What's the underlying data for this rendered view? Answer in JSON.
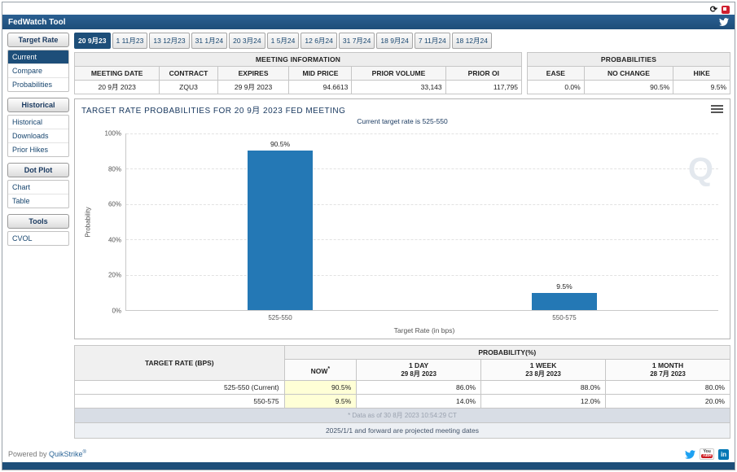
{
  "app": {
    "title": "FedWatch Tool"
  },
  "icons": {
    "refresh": "⟳",
    "youtube_you": "You",
    "youtube_tube": "Tube",
    "linkedin": "in"
  },
  "sidebar": {
    "sections": [
      {
        "header": "Target Rate",
        "selected_item": "Current",
        "items": [
          "Current",
          "Compare",
          "Probabilities"
        ]
      },
      {
        "header": "Historical",
        "items": [
          "Historical",
          "Downloads",
          "Prior Hikes"
        ]
      },
      {
        "header": "Dot Plot",
        "items": [
          "Chart",
          "Table"
        ]
      },
      {
        "header": "Tools",
        "items": [
          "CVOL"
        ]
      }
    ]
  },
  "tabs": {
    "selected": "20 9月23",
    "items": [
      "20 9月23",
      "1 11月23",
      "13 12月23",
      "31 1月24",
      "20 3月24",
      "1 5月24",
      "12 6月24",
      "31 7月24",
      "18 9月24",
      "7 11月24",
      "18 12月24"
    ]
  },
  "meeting_information": {
    "title": "MEETING INFORMATION",
    "headers": [
      "MEETING DATE",
      "CONTRACT",
      "EXPIRES",
      "MID PRICE",
      "PRIOR VOLUME",
      "PRIOR OI"
    ],
    "values": [
      "20 9月 2023",
      "ZQU3",
      "29 9月 2023",
      "94.6613",
      "33,143",
      "117,795"
    ]
  },
  "probabilities_summary": {
    "title": "PROBABILITIES",
    "headers": [
      "EASE",
      "NO CHANGE",
      "HIKE"
    ],
    "values": [
      "0.0%",
      "90.5%",
      "9.5%"
    ]
  },
  "chart_data": {
    "type": "bar",
    "title": "TARGET RATE PROBABILITIES FOR 20 9月 2023 FED MEETING",
    "subtitle": "Current target rate is 525-550",
    "categories": [
      "525-550",
      "550-575"
    ],
    "values": [
      90.5,
      9.5
    ],
    "value_labels": [
      "90.5%",
      "9.5%"
    ],
    "xlabel": "Target Rate (in bps)",
    "ylabel": "Probability",
    "ylim": [
      0,
      100
    ],
    "ytick_labels": [
      "100%",
      "80%",
      "60%",
      "40%",
      "20%",
      "0%"
    ],
    "grid": true,
    "legend": false,
    "bar_color": "#2478b5",
    "watermark": "Q"
  },
  "probability_table": {
    "target_header": "TARGET RATE (BPS)",
    "group_header": "PROBABILITY(%)",
    "subheaders": [
      {
        "line1": "NOW",
        "sup": "*",
        "line2": ""
      },
      {
        "line1": "1 DAY",
        "sup": "",
        "line2": "29 8月 2023"
      },
      {
        "line1": "1 WEEK",
        "sup": "",
        "line2": "23 8月 2023"
      },
      {
        "line1": "1 MONTH",
        "sup": "",
        "line2": "28 7月 2023"
      }
    ],
    "rows": [
      {
        "cells": [
          "525-550 (Current)",
          "90.5%",
          "86.0%",
          "88.0%",
          "80.0%"
        ]
      },
      {
        "cells": [
          "550-575",
          "9.5%",
          "14.0%",
          "12.0%",
          "20.0%"
        ]
      }
    ],
    "footnote": "* Data as of 30 8月 2023 10:54:29 CT",
    "note": "2025/1/1 and forward are projected meeting dates"
  },
  "footer": {
    "powered_prefix": "Powered by ",
    "brand": "QuikStrike",
    "reg": "®"
  },
  "colors": {
    "accent": "#1d4e79",
    "bar": "#2478b5",
    "highlight": "#ffffd6"
  }
}
